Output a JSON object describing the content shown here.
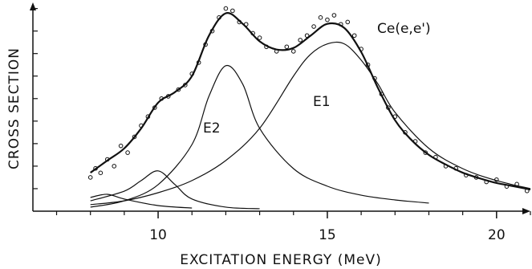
{
  "chart_data": {
    "type": "line",
    "x_label": "EXCITATION ENERGY (MeV)",
    "y_label": "CROSS SECTION",
    "annotations": [
      "Ce(e,e')",
      "E1",
      "E2"
    ],
    "xlim": [
      6.3,
      21.0
    ],
    "ylim": [
      0,
      9.2
    ],
    "xticks": [
      10,
      15,
      20
    ],
    "xminorticks": [
      7,
      8,
      9,
      11,
      12,
      13,
      14,
      16,
      17,
      18,
      19,
      21
    ],
    "yticks": [
      1,
      2,
      3,
      4,
      5,
      6,
      7,
      8,
      9
    ],
    "ytick_labels": false,
    "grid": false,
    "series": [
      {
        "name": "data",
        "marker": "circle",
        "color": "#111",
        "x": [
          8.0,
          8.15,
          8.3,
          8.5,
          8.7,
          8.9,
          9.1,
          9.3,
          9.5,
          9.7,
          9.9,
          10.1,
          10.3,
          10.6,
          10.8,
          11.0,
          11.2,
          11.4,
          11.6,
          11.8,
          12.0,
          12.2,
          12.4,
          12.6,
          12.8,
          13.0,
          13.2,
          13.5,
          13.8,
          14.0,
          14.2,
          14.4,
          14.6,
          14.8,
          15.0,
          15.2,
          15.4,
          15.6,
          15.8,
          16.0,
          16.2,
          16.4,
          16.6,
          16.8,
          17.0,
          17.3,
          17.6,
          17.9,
          18.2,
          18.5,
          18.8,
          19.1,
          19.4,
          19.7,
          20.0,
          20.3,
          20.6,
          20.9
        ],
        "values": [
          1.5,
          1.9,
          1.7,
          2.3,
          2.0,
          2.9,
          2.6,
          3.3,
          3.8,
          4.2,
          4.6,
          5.0,
          5.1,
          5.4,
          5.6,
          6.1,
          6.6,
          7.4,
          8.0,
          8.6,
          9.0,
          8.9,
          8.4,
          8.3,
          7.9,
          7.7,
          7.3,
          7.1,
          7.3,
          7.1,
          7.6,
          7.8,
          8.2,
          8.6,
          8.5,
          8.7,
          8.3,
          8.4,
          7.8,
          7.2,
          6.5,
          5.9,
          5.2,
          4.6,
          4.2,
          3.5,
          3.1,
          2.6,
          2.4,
          2.0,
          1.9,
          1.6,
          1.5,
          1.3,
          1.4,
          1.1,
          1.2,
          0.9
        ]
      },
      {
        "name": "total",
        "color": "#111",
        "width": 2.2,
        "x": [
          8,
          8.5,
          9,
          9.5,
          10,
          10.5,
          11,
          11.5,
          12,
          12.5,
          13,
          13.5,
          14,
          14.5,
          15,
          15.5,
          16,
          16.5,
          17,
          17.5,
          18,
          18.5,
          19,
          19.5,
          20,
          20.5,
          21
        ],
        "values": [
          1.71,
          2.25,
          2.79,
          3.68,
          4.82,
          5.29,
          6.0,
          7.79,
          8.79,
          8.32,
          7.54,
          7.18,
          7.25,
          7.79,
          8.32,
          8.14,
          7.07,
          5.46,
          4.04,
          3.14,
          2.5,
          2.07,
          1.71,
          1.46,
          1.25,
          1.11,
          0.96
        ]
      },
      {
        "name": "E1",
        "color": "#111",
        "width": 1.2,
        "x": [
          8,
          9,
          10,
          11,
          12,
          13,
          14,
          14.5,
          15,
          15.5,
          16,
          16.5,
          17,
          18,
          19,
          20,
          21
        ],
        "values": [
          0.29,
          0.46,
          0.82,
          1.36,
          2.25,
          3.68,
          6.0,
          6.96,
          7.43,
          7.43,
          6.71,
          5.64,
          4.39,
          2.79,
          1.89,
          1.36,
          1.0
        ]
      },
      {
        "name": "E2",
        "color": "#111",
        "width": 1.2,
        "x": [
          8,
          9,
          10,
          11,
          11.5,
          12,
          12.5,
          13,
          14,
          15,
          16,
          17,
          18
        ],
        "values": [
          0.18,
          0.46,
          1.18,
          2.96,
          5.1,
          6.46,
          5.64,
          3.68,
          1.89,
          1.11,
          0.71,
          0.5,
          0.36
        ]
      },
      {
        "name": "peak-10",
        "color": "#111",
        "width": 1.2,
        "x": [
          8,
          9,
          9.5,
          10,
          10.5,
          11,
          12,
          13
        ],
        "values": [
          0.46,
          0.89,
          1.36,
          1.79,
          1.18,
          0.54,
          0.18,
          0.11
        ]
      },
      {
        "name": "peak-8.5",
        "color": "#111",
        "width": 1.2,
        "x": [
          8,
          8.5,
          9,
          10,
          11
        ],
        "values": [
          0.61,
          0.75,
          0.54,
          0.25,
          0.14
        ]
      }
    ]
  }
}
